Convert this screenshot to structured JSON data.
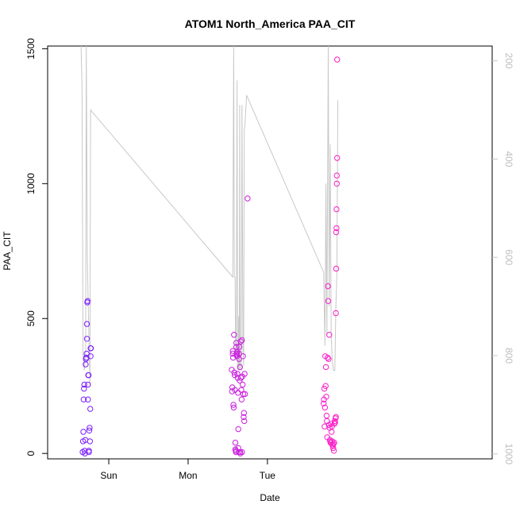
{
  "chart_data": {
    "type": "scatter",
    "title": "ATOM1 North_America PAA_CIT",
    "xlabel": "Date",
    "ylabel": "PAA_CIT",
    "xlim_hours": [
      -18.5,
      116
    ],
    "x_ticks": [
      {
        "label": "Sun",
        "hours": 0
      },
      {
        "label": "Mon",
        "hours": 24
      },
      {
        "label": "Tue",
        "hours": 48
      }
    ],
    "ylim": [
      -20,
      1510
    ],
    "y_ticks": [
      0,
      500,
      1000,
      1500
    ],
    "secondary_axis": {
      "series": "pressure",
      "reversed": true,
      "ylim": [
        1010,
        170
      ],
      "ticks": [
        200,
        400,
        600,
        800,
        1000
      ],
      "color": "#c8c8c8"
    },
    "color_scale": [
      "#7a1fff",
      "#ff1fc8"
    ],
    "points": [
      [
        -7.9,
        5
      ],
      [
        -7.8,
        45
      ],
      [
        -7.7,
        80
      ],
      [
        -7.6,
        200
      ],
      [
        -7.5,
        240
      ],
      [
        -7.4,
        255
      ],
      [
        -7.3,
        10
      ],
      [
        -7.2,
        0
      ],
      [
        -7.1,
        50
      ],
      [
        -7.0,
        330
      ],
      [
        -6.9,
        350
      ],
      [
        -6.8,
        355
      ],
      [
        -6.7,
        370
      ],
      [
        -6.6,
        425
      ],
      [
        -6.6,
        480
      ],
      [
        -6.5,
        560
      ],
      [
        -6.4,
        565
      ],
      [
        -6.3,
        200
      ],
      [
        -6.3,
        255
      ],
      [
        -6.2,
        290
      ],
      [
        -6.1,
        290
      ],
      [
        -6.0,
        10
      ],
      [
        -6.0,
        5
      ],
      [
        -5.9,
        85
      ],
      [
        -5.8,
        95
      ],
      [
        -5.7,
        45
      ],
      [
        -5.6,
        165
      ],
      [
        -5.5,
        360
      ],
      [
        -5.5,
        390
      ],
      [
        -5.4,
        390
      ],
      [
        37.2,
        310
      ],
      [
        37.3,
        230
      ],
      [
        37.4,
        245
      ],
      [
        37.5,
        370
      ],
      [
        37.5,
        380
      ],
      [
        37.6,
        355
      ],
      [
        37.7,
        180
      ],
      [
        37.8,
        170
      ],
      [
        37.9,
        440
      ],
      [
        38.0,
        300
      ],
      [
        38.1,
        290
      ],
      [
        38.2,
        235
      ],
      [
        38.3,
        15
      ],
      [
        38.3,
        40
      ],
      [
        38.4,
        10
      ],
      [
        38.5,
        5
      ],
      [
        38.6,
        395
      ],
      [
        38.6,
        410
      ],
      [
        38.7,
        365
      ],
      [
        38.7,
        370
      ],
      [
        38.8,
        375
      ],
      [
        38.8,
        360
      ],
      [
        38.9,
        295
      ],
      [
        39.0,
        280
      ],
      [
        39.1,
        225
      ],
      [
        39.2,
        20
      ],
      [
        39.2,
        90
      ],
      [
        39.3,
        5
      ],
      [
        39.4,
        350
      ],
      [
        39.4,
        370
      ],
      [
        39.5,
        395
      ],
      [
        39.6,
        270
      ],
      [
        39.7,
        320
      ],
      [
        39.8,
        0
      ],
      [
        39.8,
        5
      ],
      [
        39.9,
        415
      ],
      [
        40.0,
        280
      ],
      [
        40.1,
        235
      ],
      [
        40.2,
        200
      ],
      [
        40.3,
        420
      ],
      [
        40.3,
        5
      ],
      [
        40.4,
        285
      ],
      [
        40.5,
        255
      ],
      [
        40.6,
        360
      ],
      [
        40.7,
        220
      ],
      [
        40.8,
        135
      ],
      [
        40.9,
        150
      ],
      [
        41.0,
        120
      ],
      [
        41.1,
        295
      ],
      [
        41.2,
        220
      ],
      [
        42.0,
        945
      ],
      [
        65.0,
        185
      ],
      [
        65.1,
        200
      ],
      [
        65.2,
        240
      ],
      [
        65.3,
        100
      ],
      [
        65.4,
        170
      ],
      [
        65.5,
        360
      ],
      [
        65.6,
        250
      ],
      [
        65.7,
        320
      ],
      [
        65.8,
        210
      ],
      [
        65.9,
        140
      ],
      [
        66.0,
        120
      ],
      [
        66.1,
        60
      ],
      [
        66.2,
        355
      ],
      [
        66.3,
        620
      ],
      [
        66.4,
        565
      ],
      [
        66.5,
        350
      ],
      [
        66.6,
        105
      ],
      [
        66.7,
        440
      ],
      [
        66.8,
        95
      ],
      [
        66.9,
        50
      ],
      [
        67.0,
        45
      ],
      [
        67.1,
        40
      ],
      [
        67.2,
        40
      ],
      [
        67.3,
        110
      ],
      [
        67.4,
        80
      ],
      [
        67.5,
        100
      ],
      [
        67.6,
        45
      ],
      [
        67.7,
        30
      ],
      [
        67.8,
        30
      ],
      [
        67.9,
        20
      ],
      [
        68.0,
        35
      ],
      [
        68.1,
        10
      ],
      [
        68.2,
        40
      ],
      [
        68.3,
        110
      ],
      [
        68.4,
        120
      ],
      [
        68.5,
        115
      ],
      [
        68.6,
        130
      ],
      [
        68.7,
        135
      ],
      [
        68.7,
        520
      ],
      [
        68.8,
        685
      ],
      [
        68.8,
        820
      ],
      [
        68.9,
        835
      ],
      [
        68.9,
        905
      ],
      [
        69.0,
        1000
      ],
      [
        69.0,
        1030
      ],
      [
        69.1,
        1095
      ],
      [
        69.1,
        1460
      ]
    ],
    "pressure_line": [
      [
        -8.4,
        170
      ],
      [
        -8.1,
        250
      ],
      [
        -7.8,
        800
      ],
      [
        -7.4,
        830
      ],
      [
        -7.0,
        790
      ],
      [
        -6.8,
        170
      ],
      [
        -6.5,
        600
      ],
      [
        -6.2,
        700
      ],
      [
        -5.7,
        860
      ],
      [
        -5.5,
        300
      ],
      [
        37.5,
        640
      ],
      [
        37.8,
        170
      ],
      [
        38.0,
        640
      ],
      [
        38.2,
        640
      ],
      [
        38.4,
        800
      ],
      [
        38.6,
        780
      ],
      [
        38.8,
        240
      ],
      [
        39.0,
        820
      ],
      [
        39.2,
        830
      ],
      [
        39.3,
        720
      ],
      [
        39.5,
        830
      ],
      [
        39.6,
        290
      ],
      [
        39.8,
        820
      ],
      [
        40.1,
        830
      ],
      [
        40.3,
        290
      ],
      [
        40.6,
        790
      ],
      [
        40.8,
        820
      ],
      [
        41.0,
        340
      ],
      [
        41.2,
        330
      ],
      [
        41.7,
        270
      ],
      [
        65.0,
        630
      ],
      [
        65.4,
        780
      ],
      [
        65.7,
        450
      ],
      [
        66.0,
        760
      ],
      [
        66.4,
        170
      ],
      [
        66.7,
        700
      ],
      [
        67.0,
        370
      ],
      [
        67.3,
        760
      ],
      [
        67.6,
        810
      ],
      [
        68.0,
        830
      ],
      [
        68.4,
        830
      ],
      [
        68.7,
        700
      ],
      [
        69.0,
        640
      ],
      [
        69.3,
        280
      ]
    ]
  }
}
